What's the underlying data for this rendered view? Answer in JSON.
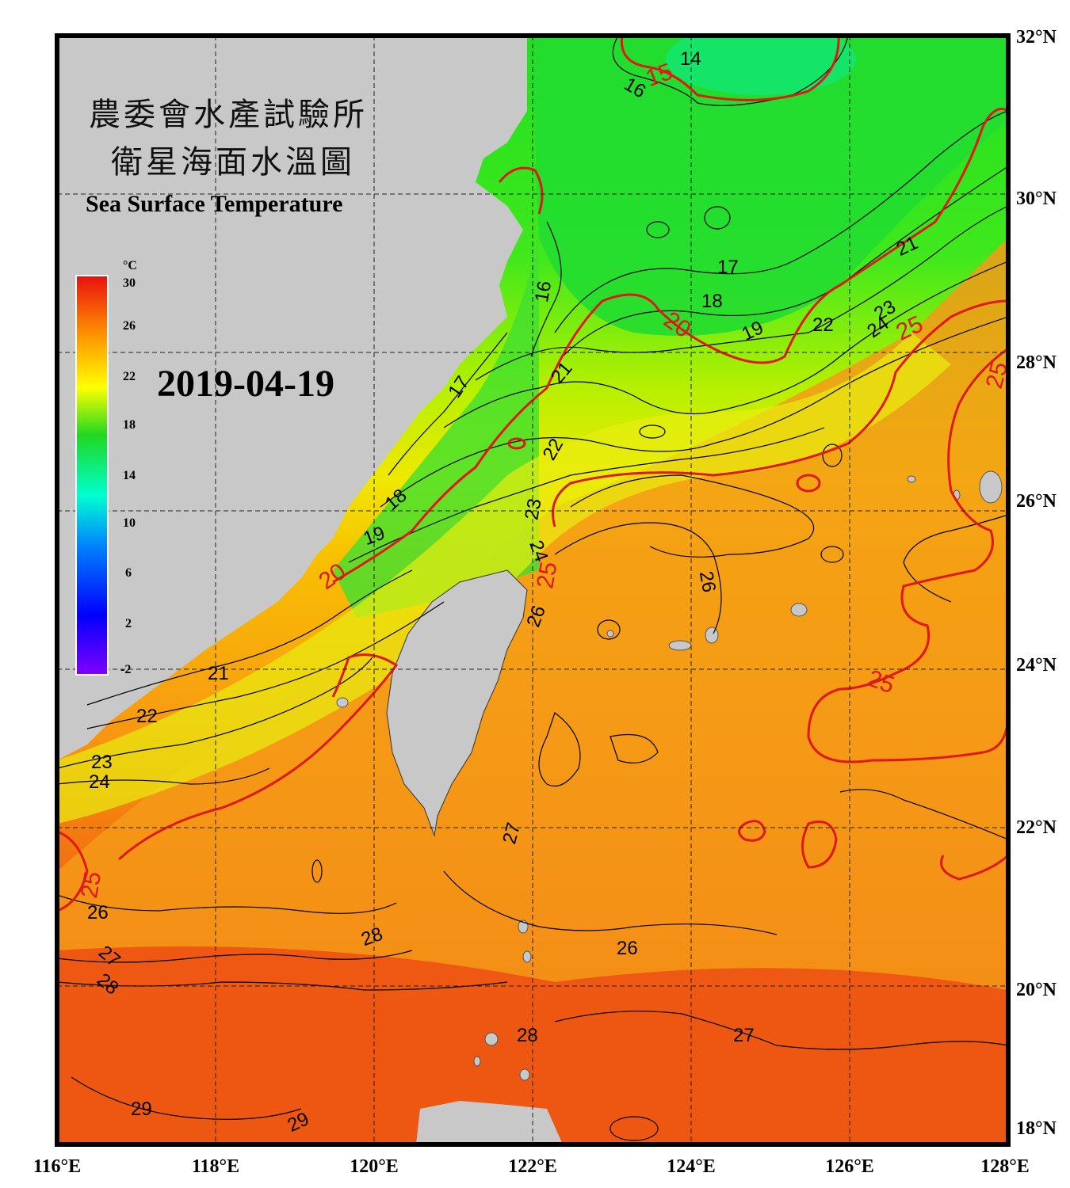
{
  "title": {
    "zh_line1": "農委會水產試驗所",
    "zh_line2": "衛星海面水溫圖",
    "en": "Sea Surface Temperature"
  },
  "date": "2019-04-19",
  "colorbar": {
    "unit": "°C",
    "ticks": [
      "30",
      "26",
      "22",
      "18",
      "14",
      "10",
      "6",
      "2",
      "-2"
    ],
    "colors": [
      "#e81010",
      "#ff8c00",
      "#ffff00",
      "#20d820",
      "#00ffd0",
      "#0080ff",
      "#0000ff",
      "#8000ff"
    ]
  },
  "axes": {
    "lon_labels": [
      "116°E",
      "118°E",
      "120°E",
      "122°E",
      "124°E",
      "126°E",
      "128°E"
    ],
    "lat_labels": [
      "32°N",
      "30°N",
      "28°N",
      "26°N",
      "24°N",
      "22°N",
      "20°N",
      "18°N"
    ]
  },
  "contour_labels_black": [
    "14",
    "16",
    "16",
    "17",
    "17",
    "18",
    "18",
    "19",
    "19",
    "21",
    "21",
    "21",
    "22",
    "22",
    "22",
    "23",
    "23",
    "23",
    "24",
    "24",
    "24",
    "26",
    "26",
    "26",
    "26",
    "27",
    "27",
    "27",
    "28",
    "28",
    "28",
    "29",
    "29"
  ],
  "contour_labels_red": [
    "15",
    "20",
    "20",
    "25",
    "25",
    "25",
    "25",
    "25"
  ],
  "colors": {
    "land": "#c8c8c8",
    "isotherm_20_25": "#e01818",
    "isotherm": "#000000",
    "frame": "#000000"
  }
}
